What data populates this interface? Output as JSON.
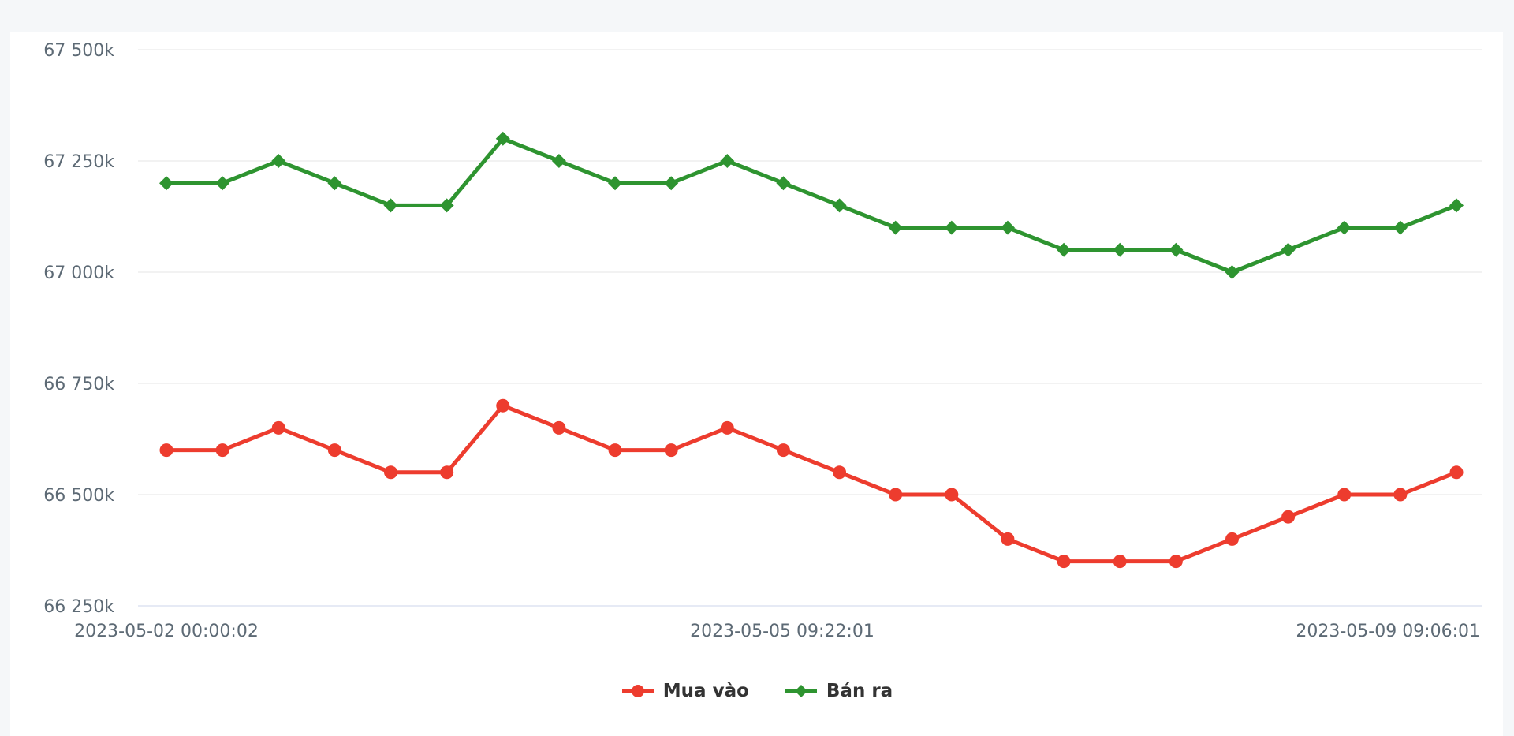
{
  "page": {
    "background_color": "#f5f7f9",
    "card_background_color": "#ffffff"
  },
  "chart_data": {
    "type": "line",
    "title": "",
    "xlabel": "",
    "ylabel": "",
    "ylim": [
      66250,
      67500
    ],
    "grid": true,
    "grid_color": "#e6e6e6",
    "axis_line_color": "#ccd6eb",
    "tick_label_color": "#5d6a75",
    "legend_position": "bottom-center",
    "legend_text_color": "#333333",
    "y_tick_values": [
      67500,
      67250,
      67000,
      66750,
      66500,
      66250
    ],
    "y_tick_labels": [
      "67 500k",
      "67 250k",
      "67 000k",
      "66 750k",
      "66 500k",
      "66 250k"
    ],
    "x_tick_labels": [
      "2023-05-02 00:00:02",
      "2023-05-05 09:22:01",
      "2023-05-09 09:06:01"
    ],
    "series": [
      {
        "name": "Mua vào",
        "color": "#ed3c2e",
        "marker": "circle",
        "values": [
          66600,
          66600,
          66650,
          66600,
          66550,
          66550,
          66700,
          66650,
          66600,
          66600,
          66650,
          66600,
          66550,
          66500,
          66500,
          66400,
          66350,
          66350,
          66350,
          66400,
          66450,
          66500,
          66500,
          66550
        ]
      },
      {
        "name": "Bán ra",
        "color": "#2e9430",
        "marker": "diamond",
        "values": [
          67200,
          67200,
          67250,
          67200,
          67150,
          67150,
          67300,
          67250,
          67200,
          67200,
          67250,
          67200,
          67150,
          67100,
          67100,
          67100,
          67050,
          67050,
          67050,
          67000,
          67050,
          67100,
          67100,
          67150
        ]
      }
    ]
  }
}
